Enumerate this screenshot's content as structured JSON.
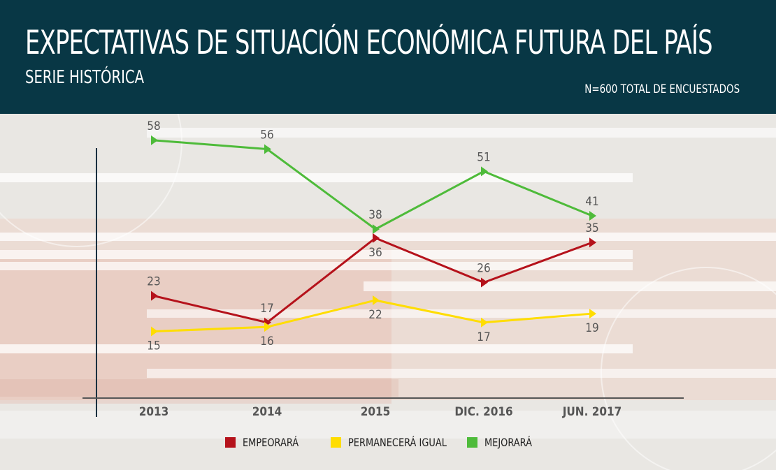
{
  "header": {
    "title": "EXPECTATIVAS DE SITUACIÓN ECONÓMICA FUTURA DEL PAÍS",
    "subtitle": "SERIE HISTÓRICA",
    "sample": "N=600 TOTAL DE ENCUESTADOS"
  },
  "colors": {
    "header_bg": "#083745",
    "empeorara": "#b5121b",
    "permanecera": "#ffdd00",
    "mejorara": "#4ebb3a"
  },
  "chart_data": {
    "type": "line",
    "categories": [
      "2013",
      "2014",
      "2015",
      "DIC. 2016",
      "JUN. 2017"
    ],
    "series": [
      {
        "name": "MEJORARÁ",
        "key": "mejorara",
        "values": [
          58,
          56,
          38,
          51,
          41
        ]
      },
      {
        "name": "EMPEORARÁ",
        "key": "empeorara",
        "values": [
          23,
          17,
          36,
          26,
          35
        ]
      },
      {
        "name": "PERMANECERÁ IGUAL",
        "key": "permanecera",
        "values": [
          15,
          16,
          22,
          17,
          19
        ]
      }
    ],
    "ylim": [
      0,
      63
    ],
    "grid": false,
    "legend_position": "bottom"
  },
  "legend": [
    {
      "label": "EMPEORARÁ",
      "color_key": "empeorara"
    },
    {
      "label": "PERMANECERÁ IGUAL",
      "color_key": "permanecera"
    },
    {
      "label": "MEJORARÁ",
      "color_key": "mejorara"
    }
  ]
}
